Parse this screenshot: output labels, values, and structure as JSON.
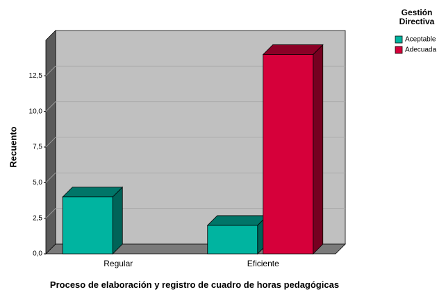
{
  "chart_data": {
    "type": "bar3d",
    "categories": [
      "Regular",
      "Eficiente"
    ],
    "series": [
      {
        "name": "Aceptable",
        "color": "#00b4a0",
        "values": [
          4,
          2
        ]
      },
      {
        "name": "Adecuada",
        "color": "#d6003a",
        "values": [
          null,
          14
        ]
      }
    ],
    "ylim": [
      0,
      15
    ],
    "yticks": [
      {
        "value": 0,
        "label": "0,0"
      },
      {
        "value": 2.5,
        "label": "2,5"
      },
      {
        "value": 5,
        "label": "5,0"
      },
      {
        "value": 7.5,
        "label": "7,5"
      },
      {
        "value": 10,
        "label": "10,0"
      },
      {
        "value": 12.5,
        "label": "12,5"
      }
    ],
    "ylabel": "Recuento",
    "xlabel": "Proceso de elaboración y registro de cuadro de horas pedagógicas",
    "legend_title": "Gestión Directiva",
    "grid": true
  }
}
